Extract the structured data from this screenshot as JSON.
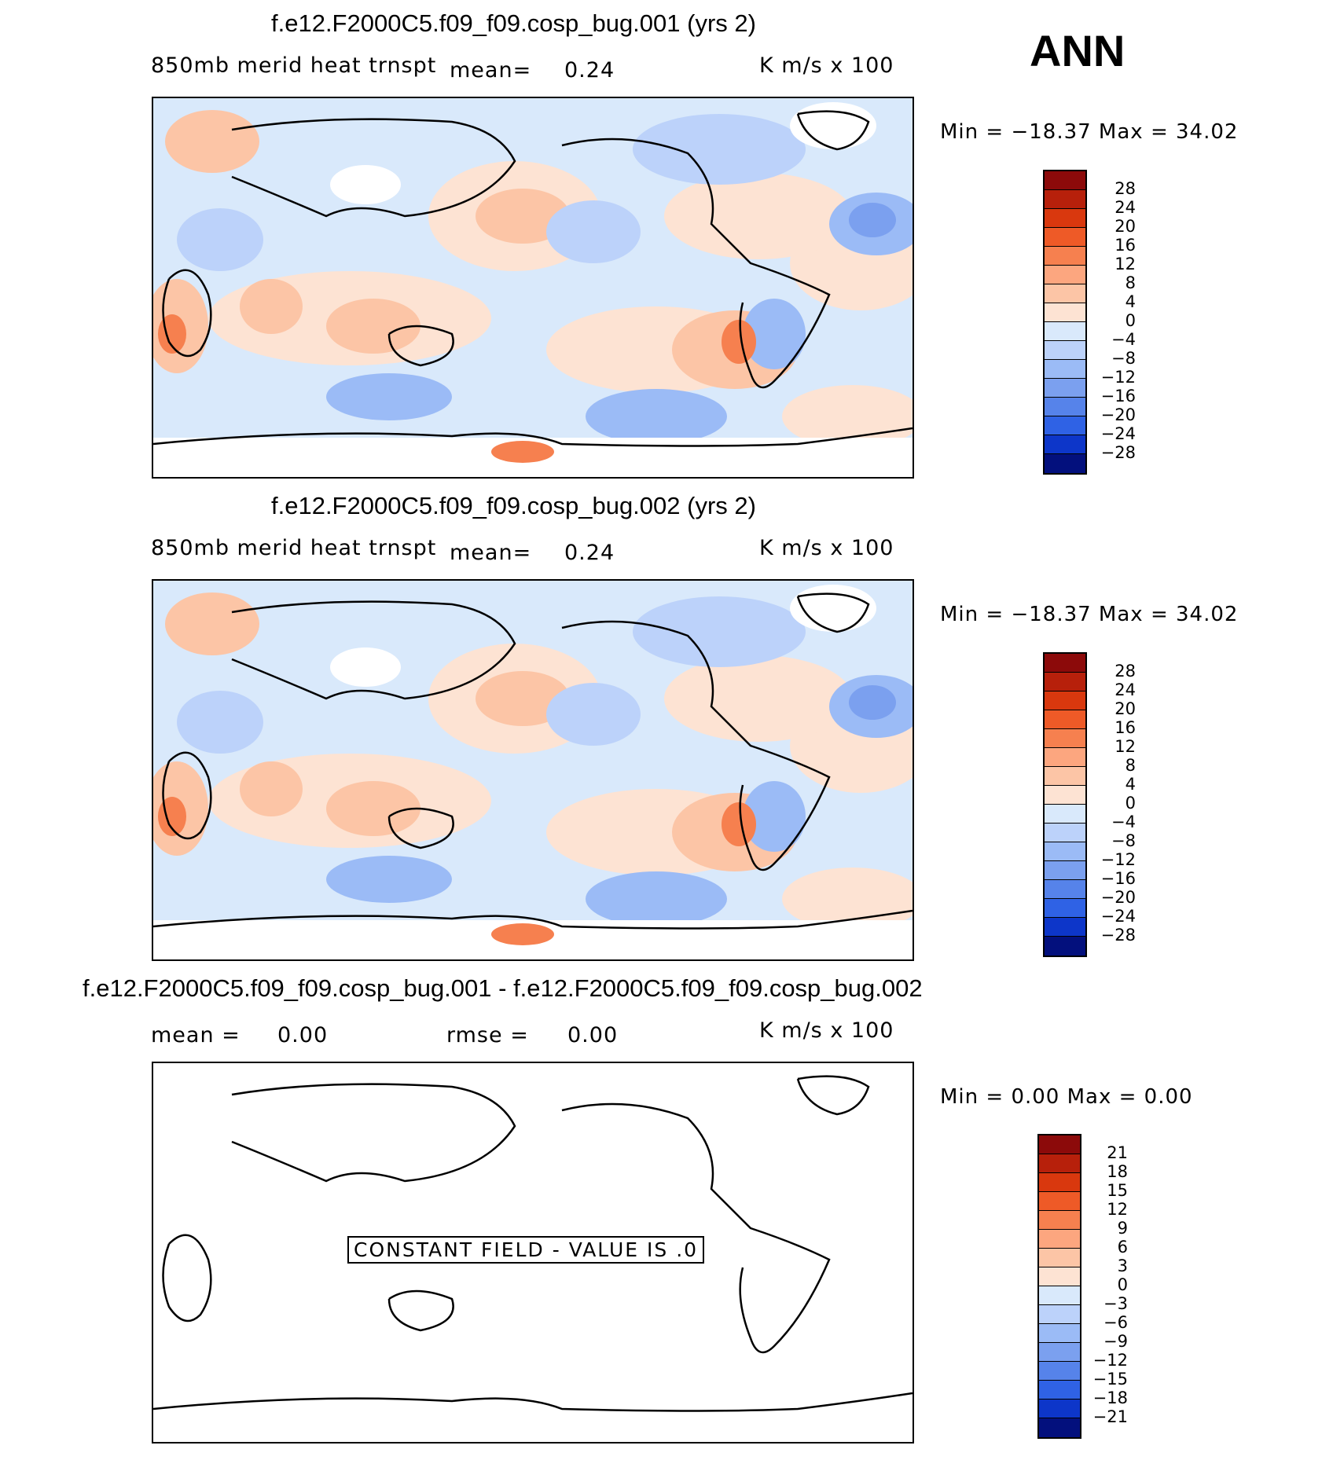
{
  "season": "ANN",
  "units": "K m/s x 100",
  "constant_field_label": "CONSTANT FIELD - VALUE IS .0",
  "colors": {
    "warm": [
      "#fde3d3",
      "#fcc5a6",
      "#fca67f",
      "#f6804f",
      "#ee5a27",
      "#d9380e",
      "#b7200b",
      "#8c0a0a"
    ],
    "cool": [
      "#d9e9fb",
      "#bcd2fa",
      "#9bbbf6",
      "#7ba0ef",
      "#5683ea",
      "#2f62e5",
      "#0d36c9",
      "#072599",
      "#03107d"
    ]
  },
  "panels": [
    {
      "title": "f.e12.F2000C5.f09_f09.cosp_bug.001 (yrs 2)",
      "variable": "850mb merid heat trnspt",
      "mean_label": "mean=",
      "mean_value": "0.24",
      "minmax": "Min  =  −18.37  Max  =   34.02",
      "colorbar": {
        "labels": [
          "28",
          "24",
          "20",
          "16",
          "12",
          "8",
          "4",
          "0",
          "−4",
          "−8",
          "−12",
          "−16",
          "−20",
          "−24",
          "−28"
        ]
      }
    },
    {
      "title": "f.e12.F2000C5.f09_f09.cosp_bug.002 (yrs 2)",
      "variable": "850mb merid heat trnspt",
      "mean_label": "mean=",
      "mean_value": "0.24",
      "minmax": "Min  =  −18.37  Max  =   34.02",
      "colorbar": {
        "labels": [
          "28",
          "24",
          "20",
          "16",
          "12",
          "8",
          "4",
          "0",
          "−4",
          "−8",
          "−12",
          "−16",
          "−20",
          "−24",
          "−28"
        ]
      }
    },
    {
      "title": "f.e12.F2000C5.f09_f09.cosp_bug.001 - f.e12.F2000C5.f09_f09.cosp_bug.002",
      "mean_label": "mean  =",
      "mean_value": "0.00",
      "rmse_label": "rmse  =",
      "rmse_value": "0.00",
      "minmax": "Min  =     0.00  Max  =     0.00",
      "colorbar": {
        "labels": [
          "21",
          "18",
          "15",
          "12",
          "9",
          "6",
          "3",
          "0",
          "−3",
          "−6",
          "−9",
          "−12",
          "−15",
          "−18",
          "−21"
        ]
      }
    }
  ]
}
